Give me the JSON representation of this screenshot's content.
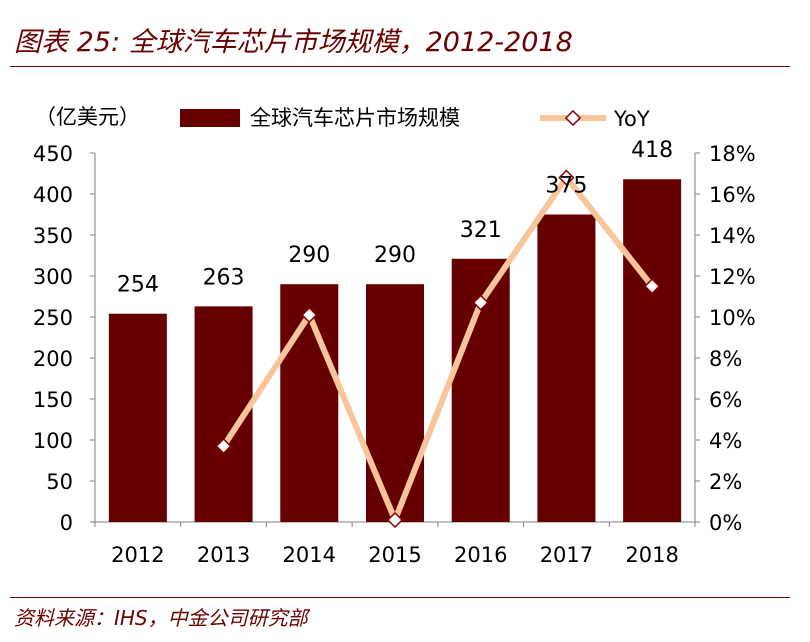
{
  "title": "图表 25:  全球汽车芯片市场规模，2012-2018",
  "source": "资料来源：IHS，中金公司研究部",
  "chart_data": {
    "type": "bar",
    "unit_label": "（亿美元）",
    "categories": [
      "2012",
      "2013",
      "2014",
      "2015",
      "2016",
      "2017",
      "2018"
    ],
    "series": [
      {
        "name": "全球汽车芯片市场规模",
        "type": "bar",
        "axis": "left",
        "values": [
          254,
          263,
          290,
          290,
          321,
          375,
          418
        ],
        "labels": [
          "254",
          "263",
          "290",
          "290",
          "321",
          "375",
          "418"
        ]
      },
      {
        "name": "YoY",
        "type": "line",
        "axis": "right",
        "values": [
          null,
          3.7,
          10.1,
          0.1,
          10.7,
          16.8,
          11.5
        ]
      }
    ],
    "ylim_left": [
      0,
      450
    ],
    "yticks_left": [
      "0",
      "50",
      "100",
      "150",
      "200",
      "250",
      "300",
      "350",
      "400",
      "450"
    ],
    "ylim_right": [
      0,
      18
    ],
    "yticks_right": [
      "0%",
      "2%",
      "4%",
      "6%",
      "8%",
      "10%",
      "12%",
      "14%",
      "16%",
      "18%"
    ],
    "legend_position": "top",
    "grid": false,
    "colors": {
      "bar": "#660000",
      "line": "#f9c59b",
      "marker_edge": "#8b0000",
      "accent": "#6b0000"
    }
  }
}
